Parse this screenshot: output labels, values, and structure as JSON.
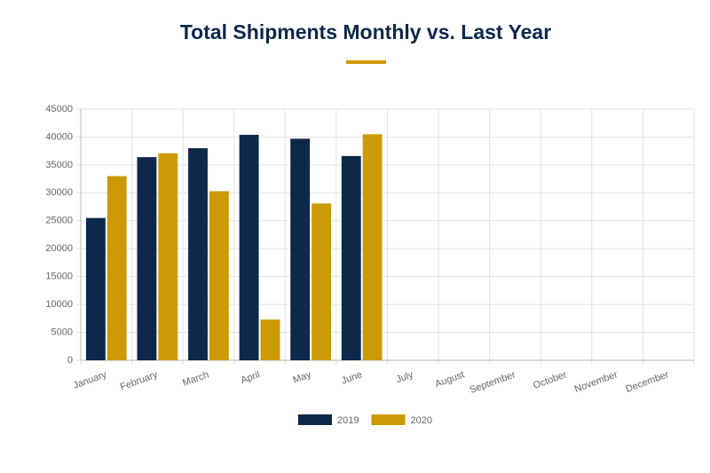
{
  "chart_data": {
    "type": "bar",
    "title": "Total Shipments Monthly vs. Last Year",
    "categories": [
      "January",
      "February",
      "March",
      "April",
      "May",
      "June",
      "July",
      "August",
      "September",
      "October",
      "November",
      "December"
    ],
    "series": [
      {
        "name": "2019",
        "color": "#0d2849",
        "values": [
          25500,
          36400,
          38000,
          40400,
          39700,
          36600,
          null,
          null,
          null,
          null,
          null,
          null
        ]
      },
      {
        "name": "2020",
        "color": "#cc9a06",
        "values": [
          33000,
          37100,
          30300,
          7300,
          28100,
          40500,
          null,
          null,
          null,
          null,
          null,
          null
        ]
      }
    ],
    "ylim": [
      0,
      45000
    ],
    "yticks": [
      0,
      5000,
      10000,
      15000,
      20000,
      25000,
      30000,
      35000,
      40000,
      45000
    ],
    "grid": true
  }
}
